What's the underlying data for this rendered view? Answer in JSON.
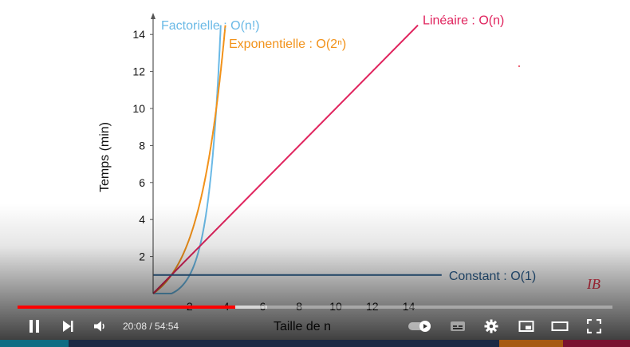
{
  "video": {
    "time_current": "20:08",
    "time_separator": " / ",
    "time_total": "54:54",
    "progress_fraction": 0.366,
    "buffer_fraction": 0.42
  },
  "colors": {
    "axis": "#555555",
    "progress": "#ff0000",
    "watermark": "#e8334a"
  },
  "watermark": {
    "text": "IB"
  },
  "chart_data": {
    "type": "line",
    "xlabel": "Taille de n",
    "ylabel": "Temps (min)",
    "xlim": [
      0,
      15
    ],
    "ylim": [
      0,
      14.5
    ],
    "x_ticks": [
      "2",
      "4",
      "6",
      "8",
      "10",
      "12",
      "14"
    ],
    "y_ticks": [
      "2",
      "4",
      "6",
      "8",
      "10",
      "12",
      "14"
    ],
    "series": [
      {
        "name": "Factorielle : O(n!)",
        "color": "#6ab9e6",
        "kind": "factorial"
      },
      {
        "name": "Exponentielle : O(2ⁿ)",
        "color": "#f2921a",
        "kind": "exponential"
      },
      {
        "name": "Linéaire : O(n)",
        "color": "#e0245e",
        "kind": "linear"
      },
      {
        "name": "Constant : O(1)",
        "color": "#2c5f8f",
        "kind": "constant",
        "value": 1.0
      }
    ]
  }
}
